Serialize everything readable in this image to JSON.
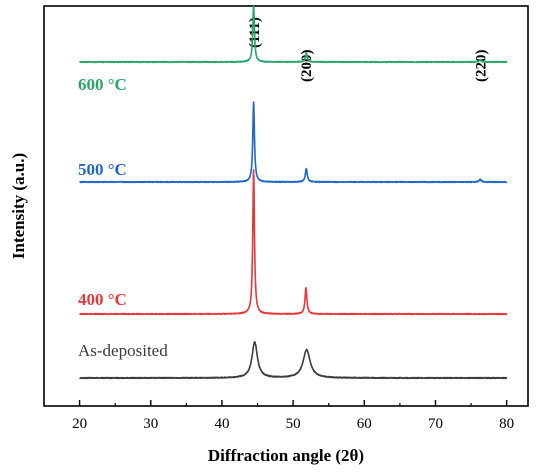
{
  "chart_data": {
    "type": "line",
    "title": "",
    "xlabel": "Diffraction angle (2θ)",
    "ylabel": "Intensity (a.u.)",
    "xlim": [
      15,
      83
    ],
    "xticks": [
      20,
      30,
      40,
      50,
      60,
      70,
      80
    ],
    "y_ticks_shown": false,
    "grid": false,
    "legend": "inline labels to the left of each curve",
    "x_range": [
      20,
      80
    ],
    "peak_labels": [
      {
        "text": "(111)",
        "x": 44.5
      },
      {
        "text": "(200)",
        "x": 51.8
      },
      {
        "text": "(220)",
        "x": 76.3
      }
    ],
    "series": [
      {
        "name": "As-deposited",
        "color": "#3c3c3c",
        "baseline": 0.07,
        "noise": 0.002,
        "peaks": [
          {
            "x": 44.6,
            "height": 0.09,
            "width": 0.45
          },
          {
            "x": 51.9,
            "height": 0.07,
            "width": 0.6
          }
        ]
      },
      {
        "name": "400 °C",
        "color": "#e8373a",
        "baseline": 0.23,
        "noise": 0.002,
        "peaks": [
          {
            "x": 44.45,
            "height": 0.36,
            "width": 0.14
          },
          {
            "x": 51.8,
            "height": 0.065,
            "width": 0.16
          }
        ]
      },
      {
        "name": "500 °C",
        "color": "#1f66c9",
        "baseline": 0.56,
        "noise": 0.002,
        "peaks": [
          {
            "x": 44.45,
            "height": 0.2,
            "width": 0.14
          },
          {
            "x": 51.85,
            "height": 0.033,
            "width": 0.16
          },
          {
            "x": 76.3,
            "height": 0.006,
            "width": 0.2
          }
        ]
      },
      {
        "name": "600 °C",
        "color": "#2aa56a",
        "baseline": 0.86,
        "noise": 0.002,
        "peaks": [
          {
            "x": 44.45,
            "height": 0.14,
            "width": 0.14
          },
          {
            "x": 51.85,
            "height": 0.022,
            "width": 0.16
          },
          {
            "x": 76.3,
            "height": 0.005,
            "width": 0.2
          }
        ]
      }
    ]
  }
}
